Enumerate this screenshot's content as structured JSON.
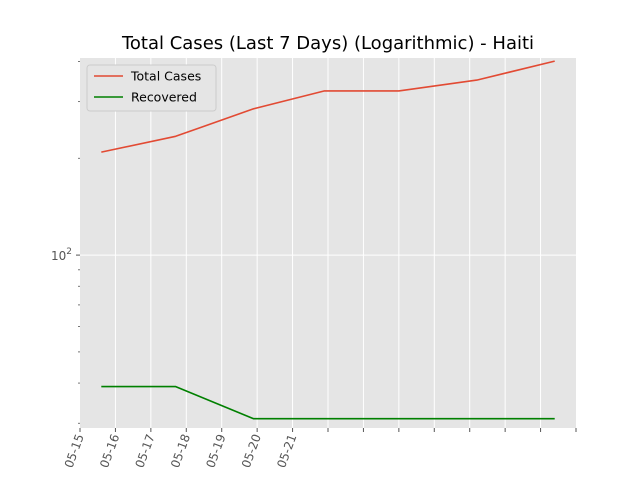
{
  "chart_data": {
    "type": "line",
    "title": "Total Cases (Last 7 Days) (Logarithmic) - Haiti",
    "xlabel": "",
    "ylabel": "",
    "yscale": "log",
    "grid": true,
    "legend_position": "top-left",
    "x_tick_labels": [
      "05-15",
      "05-16",
      "05-17",
      "05-18",
      "05-19",
      "05-20",
      "05-21"
    ],
    "y_major_tick": {
      "value": 100,
      "base": "10",
      "exponent": "2"
    },
    "x_range_days": [
      0,
      14
    ],
    "ylim": [
      29,
      410
    ],
    "series": [
      {
        "name": "Total Cases",
        "color": "#e24a33",
        "points": [
          {
            "x": 0.6,
            "y": 209
          },
          {
            "x": 2.7,
            "y": 234
          },
          {
            "x": 4.9,
            "y": 285
          },
          {
            "x": 6.9,
            "y": 324
          },
          {
            "x": 9.0,
            "y": 324
          },
          {
            "x": 11.2,
            "y": 350
          },
          {
            "x": 13.4,
            "y": 401
          }
        ]
      },
      {
        "name": "Recovered",
        "color": "#008000",
        "points": [
          {
            "x": 0.6,
            "y": 39
          },
          {
            "x": 2.7,
            "y": 39
          },
          {
            "x": 4.9,
            "y": 31
          },
          {
            "x": 6.9,
            "y": 31
          },
          {
            "x": 9.0,
            "y": 31
          },
          {
            "x": 11.2,
            "y": 31
          },
          {
            "x": 13.4,
            "y": 31
          }
        ]
      }
    ]
  }
}
